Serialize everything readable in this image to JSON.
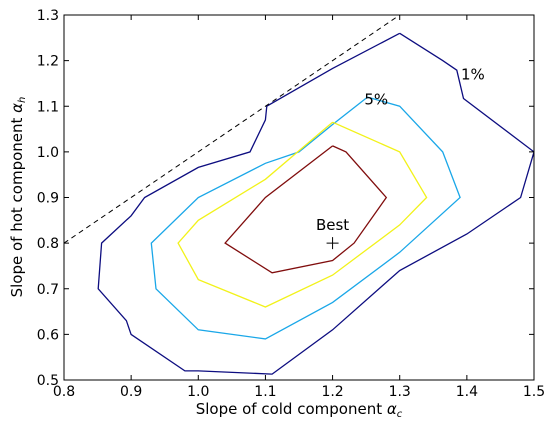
{
  "chart_data": {
    "type": "contour",
    "xlabel": "Slope of cold component",
    "xlabel_symbol": "α",
    "xlabel_subscript": "c",
    "ylabel": "Slope of hot component",
    "ylabel_symbol": "α",
    "ylabel_subscript": "h",
    "xlim": [
      0.8,
      1.5
    ],
    "ylim": [
      0.5,
      1.3
    ],
    "xticks": [
      "0.8",
      "0.9",
      "1.0",
      "1.1",
      "1.2",
      "1.3",
      "1.4",
      "1.5"
    ],
    "yticks": [
      "0.5",
      "0.6",
      "0.7",
      "0.8",
      "0.9",
      "1.0",
      "1.1",
      "1.2",
      "1.3"
    ],
    "grid": false,
    "best_point": {
      "x": 1.2,
      "y": 0.8,
      "label": "Best"
    },
    "annotations": [
      {
        "text": "1%",
        "x": 1.409,
        "y": 1.17
      },
      {
        "text": "5%",
        "x": 1.265,
        "y": 1.115
      }
    ],
    "reference_line": {
      "style": "dashed",
      "points": [
        [
          0.8,
          0.8
        ],
        [
          1.3,
          1.3
        ]
      ]
    },
    "colors": {
      "level_1pct": "#0d0d80",
      "level_5pct": "#1aa7e8",
      "level_inner": "#f2f21a",
      "level_center": "#800d0d",
      "reference": "#000000"
    },
    "contours": [
      {
        "level": "1%",
        "color_key": "level_1pct",
        "points": [
          [
            1.3,
            1.26
          ],
          [
            1.364,
            1.2
          ],
          [
            1.385,
            1.179
          ],
          [
            1.395,
            1.117
          ],
          [
            1.5,
            1.0
          ],
          [
            1.48,
            0.9
          ],
          [
            1.4,
            0.82
          ],
          [
            1.3,
            0.74
          ],
          [
            1.2,
            0.61
          ],
          [
            1.11,
            0.513
          ],
          [
            1.0,
            0.52
          ],
          [
            0.98,
            0.52
          ],
          [
            0.9,
            0.6
          ],
          [
            0.893,
            0.63
          ],
          [
            0.851,
            0.7
          ],
          [
            0.856,
            0.8
          ],
          [
            0.9,
            0.86
          ],
          [
            0.92,
            0.9
          ],
          [
            1.0,
            0.966
          ],
          [
            1.077,
            1.0
          ],
          [
            1.1,
            1.07
          ],
          [
            1.102,
            1.1
          ],
          [
            1.2,
            1.183
          ],
          [
            1.3,
            1.26
          ]
        ]
      },
      {
        "level": "5%",
        "color_key": "level_5pct",
        "points": [
          [
            1.252,
            1.12
          ],
          [
            1.3,
            1.1
          ],
          [
            1.364,
            1.0
          ],
          [
            1.39,
            0.9
          ],
          [
            1.3,
            0.78
          ],
          [
            1.2,
            0.67
          ],
          [
            1.1,
            0.59
          ],
          [
            1.0,
            0.61
          ],
          [
            0.937,
            0.7
          ],
          [
            0.93,
            0.8
          ],
          [
            1.0,
            0.9
          ],
          [
            1.1,
            0.975
          ],
          [
            1.15,
            1.0
          ],
          [
            1.2,
            1.06
          ],
          [
            1.252,
            1.12
          ]
        ]
      },
      {
        "level": "inner",
        "color_key": "level_inner",
        "points": [
          [
            1.2,
            1.065
          ],
          [
            1.3,
            1.0
          ],
          [
            1.34,
            0.9
          ],
          [
            1.3,
            0.84
          ],
          [
            1.2,
            0.73
          ],
          [
            1.1,
            0.66
          ],
          [
            1.0,
            0.72
          ],
          [
            0.97,
            0.8
          ],
          [
            1.0,
            0.85
          ],
          [
            1.1,
            0.94
          ],
          [
            1.2,
            1.065
          ]
        ]
      },
      {
        "level": "center",
        "color_key": "level_center",
        "points": [
          [
            1.2,
            1.013
          ],
          [
            1.22,
            1.0
          ],
          [
            1.28,
            0.9
          ],
          [
            1.232,
            0.8
          ],
          [
            1.2,
            0.762
          ],
          [
            1.11,
            0.735
          ],
          [
            1.04,
            0.8
          ],
          [
            1.1,
            0.9
          ],
          [
            1.2,
            1.013
          ]
        ]
      }
    ]
  }
}
